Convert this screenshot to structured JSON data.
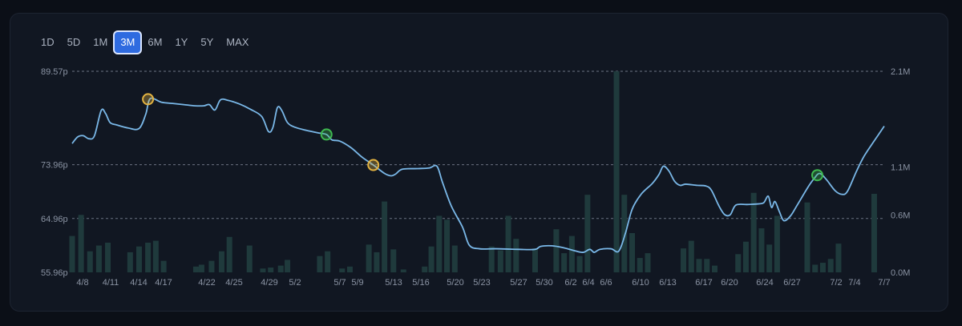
{
  "range_buttons": [
    "1D",
    "5D",
    "1M",
    "3M",
    "6M",
    "1Y",
    "5Y",
    "MAX"
  ],
  "active_range": "3M",
  "colors": {
    "line": "#7ab8e8",
    "volume": "#1f3a3c",
    "marker_yellow": "#e3b341",
    "marker_green": "#3fb950",
    "active_button": "#2f6be0"
  },
  "chart_data": {
    "type": "line",
    "price_axis": {
      "ticks": [
        "89.57p",
        "73.96p",
        "64.96p",
        "55.96p"
      ],
      "values": [
        89.57,
        73.96,
        64.96,
        55.96
      ],
      "ylim": [
        55.96,
        89.57
      ]
    },
    "volume_axis": {
      "ticks": [
        "2.1M",
        "1.1M",
        "0.6M",
        "0.0M"
      ],
      "values": [
        2.1,
        1.1,
        0.6,
        0.0
      ],
      "ylim": [
        0,
        2.1
      ]
    },
    "x_ticks": [
      "4/8",
      "4/11",
      "4/14",
      "4/17",
      "4/22",
      "4/25",
      "4/29",
      "5/2",
      "5/7",
      "5/9",
      "5/13",
      "5/16",
      "5/20",
      "5/23",
      "5/27",
      "5/30",
      "6/2",
      "6/4",
      "6/6",
      "6/10",
      "6/13",
      "6/17",
      "6/20",
      "6/24",
      "6/27",
      "7/2",
      "7/4",
      "7/7"
    ],
    "grid": true,
    "price_series": [
      {
        "d": 0,
        "v": 77.5
      },
      {
        "d": 0.5,
        "v": 78.6
      },
      {
        "d": 1,
        "v": 78.8
      },
      {
        "d": 1.5,
        "v": 78.3
      },
      {
        "d": 2,
        "v": 78.8
      },
      {
        "d": 2.6,
        "v": 83.0
      },
      {
        "d": 3,
        "v": 82.5
      },
      {
        "d": 3.4,
        "v": 81.0
      },
      {
        "d": 4,
        "v": 80.6
      },
      {
        "d": 5,
        "v": 80.1
      },
      {
        "d": 6,
        "v": 80.0
      },
      {
        "d": 6.6,
        "v": 82.4
      },
      {
        "d": 7,
        "v": 85.0
      },
      {
        "d": 8,
        "v": 84.4
      },
      {
        "d": 9,
        "v": 84.2
      },
      {
        "d": 10,
        "v": 84.0
      },
      {
        "d": 11,
        "v": 83.8
      },
      {
        "d": 11.8,
        "v": 83.8
      },
      {
        "d": 12.3,
        "v": 84.0
      },
      {
        "d": 12.8,
        "v": 83.1
      },
      {
        "d": 13.3,
        "v": 84.8
      },
      {
        "d": 14,
        "v": 84.7
      },
      {
        "d": 15,
        "v": 84.1
      },
      {
        "d": 16,
        "v": 83.2
      },
      {
        "d": 17,
        "v": 82.0
      },
      {
        "d": 17.6,
        "v": 79.5
      },
      {
        "d": 18,
        "v": 80.2
      },
      {
        "d": 18.4,
        "v": 83.5
      },
      {
        "d": 18.8,
        "v": 83.0
      },
      {
        "d": 19.3,
        "v": 81.0
      },
      {
        "d": 20,
        "v": 80.2
      },
      {
        "d": 21,
        "v": 79.7
      },
      {
        "d": 22,
        "v": 79.3
      },
      {
        "d": 22.8,
        "v": 79.0
      },
      {
        "d": 23.3,
        "v": 78.1
      },
      {
        "d": 24,
        "v": 77.9
      },
      {
        "d": 25,
        "v": 76.8
      },
      {
        "d": 26,
        "v": 75.2
      },
      {
        "d": 27,
        "v": 73.9
      },
      {
        "d": 28,
        "v": 72.5
      },
      {
        "d": 28.6,
        "v": 72.1
      },
      {
        "d": 29,
        "v": 72.4
      },
      {
        "d": 29.6,
        "v": 73.2
      },
      {
        "d": 31,
        "v": 73.3
      },
      {
        "d": 32,
        "v": 73.4
      },
      {
        "d": 32.7,
        "v": 73.7
      },
      {
        "d": 33.2,
        "v": 71.0
      },
      {
        "d": 34,
        "v": 67.0
      },
      {
        "d": 35,
        "v": 63.5
      },
      {
        "d": 35.6,
        "v": 60.5
      },
      {
        "d": 36.5,
        "v": 59.9
      },
      {
        "d": 38,
        "v": 59.9
      },
      {
        "d": 40,
        "v": 59.8
      },
      {
        "d": 41.5,
        "v": 59.8
      },
      {
        "d": 42,
        "v": 60.3
      },
      {
        "d": 43,
        "v": 60.4
      },
      {
        "d": 44,
        "v": 60.1
      },
      {
        "d": 45,
        "v": 59.6
      },
      {
        "d": 45.8,
        "v": 59.3
      },
      {
        "d": 46.4,
        "v": 59.8
      },
      {
        "d": 46.8,
        "v": 59.3
      },
      {
        "d": 47.3,
        "v": 59.8
      },
      {
        "d": 48.3,
        "v": 59.9
      },
      {
        "d": 49,
        "v": 59.5
      },
      {
        "d": 49.6,
        "v": 62.5
      },
      {
        "d": 50.2,
        "v": 66.5
      },
      {
        "d": 51,
        "v": 69.0
      },
      {
        "d": 52,
        "v": 70.8
      },
      {
        "d": 52.6,
        "v": 72.3
      },
      {
        "d": 53,
        "v": 73.7
      },
      {
        "d": 53.5,
        "v": 72.9
      },
      {
        "d": 54,
        "v": 71.2
      },
      {
        "d": 54.5,
        "v": 70.5
      },
      {
        "d": 55,
        "v": 70.7
      },
      {
        "d": 56,
        "v": 70.5
      },
      {
        "d": 56.8,
        "v": 70.4
      },
      {
        "d": 57.3,
        "v": 69.7
      },
      {
        "d": 58,
        "v": 67.0
      },
      {
        "d": 58.5,
        "v": 65.6
      },
      {
        "d": 59,
        "v": 65.6
      },
      {
        "d": 59.5,
        "v": 67.2
      },
      {
        "d": 60.5,
        "v": 67.3
      },
      {
        "d": 61.5,
        "v": 67.4
      },
      {
        "d": 62,
        "v": 67.6
      },
      {
        "d": 62.4,
        "v": 68.7
      },
      {
        "d": 62.7,
        "v": 66.8
      },
      {
        "d": 63,
        "v": 67.8
      },
      {
        "d": 63.4,
        "v": 66.1
      },
      {
        "d": 63.8,
        "v": 64.6
      },
      {
        "d": 64.4,
        "v": 65.4
      },
      {
        "d": 65,
        "v": 67.2
      },
      {
        "d": 66,
        "v": 70.3
      },
      {
        "d": 66.5,
        "v": 71.6
      },
      {
        "d": 67,
        "v": 72.5
      },
      {
        "d": 67.6,
        "v": 71.5
      },
      {
        "d": 68.4,
        "v": 69.6
      },
      {
        "d": 69,
        "v": 69.0
      },
      {
        "d": 69.5,
        "v": 69.5
      },
      {
        "d": 70.3,
        "v": 72.8
      },
      {
        "d": 71,
        "v": 75.4
      },
      {
        "d": 72,
        "v": 78.2
      },
      {
        "d": 72.8,
        "v": 80.4
      }
    ],
    "volume_bars": [
      {
        "d": 0,
        "v": 0.38
      },
      {
        "d": 0.8,
        "v": 0.6
      },
      {
        "d": 1.6,
        "v": 0.22
      },
      {
        "d": 2.4,
        "v": 0.28
      },
      {
        "d": 3.2,
        "v": 0.31
      },
      {
        "d": 5.2,
        "v": 0.21
      },
      {
        "d": 6.0,
        "v": 0.27
      },
      {
        "d": 6.8,
        "v": 0.31
      },
      {
        "d": 7.5,
        "v": 0.33
      },
      {
        "d": 8.2,
        "v": 0.12
      },
      {
        "d": 11.1,
        "v": 0.06
      },
      {
        "d": 11.6,
        "v": 0.08
      },
      {
        "d": 12.5,
        "v": 0.12
      },
      {
        "d": 13.4,
        "v": 0.22
      },
      {
        "d": 14.1,
        "v": 0.37
      },
      {
        "d": 15.9,
        "v": 0.28
      },
      {
        "d": 17.1,
        "v": 0.04
      },
      {
        "d": 17.8,
        "v": 0.05
      },
      {
        "d": 18.7,
        "v": 0.07
      },
      {
        "d": 19.3,
        "v": 0.13
      },
      {
        "d": 22.2,
        "v": 0.17
      },
      {
        "d": 22.9,
        "v": 0.22
      },
      {
        "d": 24.2,
        "v": 0.04
      },
      {
        "d": 24.9,
        "v": 0.06
      },
      {
        "d": 26.6,
        "v": 0.29
      },
      {
        "d": 27.3,
        "v": 0.21
      },
      {
        "d": 28.0,
        "v": 0.74
      },
      {
        "d": 28.8,
        "v": 0.24
      },
      {
        "d": 29.7,
        "v": 0.03
      },
      {
        "d": 31.6,
        "v": 0.06
      },
      {
        "d": 32.2,
        "v": 0.27
      },
      {
        "d": 32.9,
        "v": 0.59
      },
      {
        "d": 33.6,
        "v": 0.55
      },
      {
        "d": 34.3,
        "v": 0.28
      },
      {
        "d": 37.6,
        "v": 0.27
      },
      {
        "d": 38.4,
        "v": 0.23
      },
      {
        "d": 39.1,
        "v": 0.59
      },
      {
        "d": 39.8,
        "v": 0.35
      },
      {
        "d": 41.5,
        "v": 0.25
      },
      {
        "d": 43.4,
        "v": 0.45
      },
      {
        "d": 44.1,
        "v": 0.2
      },
      {
        "d": 44.8,
        "v": 0.38
      },
      {
        "d": 45.5,
        "v": 0.17
      },
      {
        "d": 46.2,
        "v": 0.81
      },
      {
        "d": 48.8,
        "v": 2.1
      },
      {
        "d": 49.5,
        "v": 0.81
      },
      {
        "d": 50.2,
        "v": 0.41
      },
      {
        "d": 50.9,
        "v": 0.15
      },
      {
        "d": 51.6,
        "v": 0.2
      },
      {
        "d": 54.8,
        "v": 0.25
      },
      {
        "d": 55.5,
        "v": 0.33
      },
      {
        "d": 56.2,
        "v": 0.14
      },
      {
        "d": 56.9,
        "v": 0.14
      },
      {
        "d": 57.6,
        "v": 0.07
      },
      {
        "d": 59.7,
        "v": 0.19
      },
      {
        "d": 60.4,
        "v": 0.32
      },
      {
        "d": 61.1,
        "v": 0.83
      },
      {
        "d": 61.8,
        "v": 0.46
      },
      {
        "d": 62.5,
        "v": 0.29
      },
      {
        "d": 63.2,
        "v": 0.59
      },
      {
        "d": 65.9,
        "v": 0.73
      },
      {
        "d": 66.6,
        "v": 0.08
      },
      {
        "d": 67.3,
        "v": 0.1
      },
      {
        "d": 68.0,
        "v": 0.14
      },
      {
        "d": 68.7,
        "v": 0.3
      },
      {
        "d": 71.9,
        "v": 0.82
      }
    ],
    "markers": [
      {
        "color": "yellow",
        "d": 6.8,
        "v": 84.9
      },
      {
        "color": "green",
        "d": 22.8,
        "v": 79.0
      },
      {
        "color": "yellow",
        "d": 27.0,
        "v": 73.9
      },
      {
        "color": "green",
        "d": 66.8,
        "v": 72.2
      }
    ]
  }
}
